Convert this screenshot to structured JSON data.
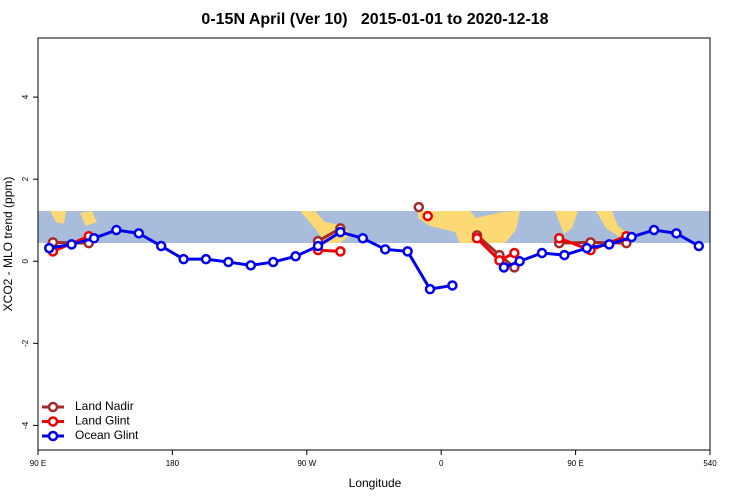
{
  "chart_data": {
    "type": "line",
    "title": "0-15N April (Ver 10)   2015-01-01 to 2020-12-18",
    "x_label": "Longitude",
    "y_label": "XCO2 - MLO trend (ppm)",
    "xlim": [
      90,
      540
    ],
    "ylim": [
      -4.6,
      5.44
    ],
    "xticks": [
      {
        "value": 90,
        "label": "90 E"
      },
      180,
      {
        "value": 270,
        "label": "90 W"
      },
      {
        "value": 360,
        "label": "0"
      },
      {
        "value": 450,
        "label": "90 E"
      },
      540
    ],
    "yticks": [
      -4,
      -2,
      0,
      2,
      4
    ],
    "legend": "bottom-left",
    "series": [
      {
        "name": "Land Nadir",
        "color": "#a52a2a",
        "x": [
          100,
          124,
          null,
          277.5,
          292.5,
          null,
          345,
          null,
          384,
          399,
          409,
          null,
          439,
          460,
          484
        ],
        "values": [
          0.46,
          0.44,
          null,
          0.49,
          0.8,
          null,
          1.32,
          null,
          0.63,
          0.15,
          -0.15,
          null,
          0.44,
          0.46,
          0.44
        ]
      },
      {
        "name": "Land Glint",
        "color": "#ee0000",
        "x": [
          100,
          124,
          null,
          277.5,
          292.5,
          null,
          351,
          null,
          384,
          399,
          409,
          null,
          439,
          460,
          484
        ],
        "values": [
          0.24,
          0.61,
          null,
          0.27,
          0.24,
          null,
          1.1,
          null,
          0.56,
          0.02,
          0.2,
          null,
          0.56,
          0.27,
          0.61
        ]
      },
      {
        "name": "Ocean Glint",
        "color": "#0000ee",
        "x": [
          97.5,
          112.5,
          127.5,
          142.5,
          157.5,
          172.5,
          187.5,
          202.5,
          217.5,
          232.5,
          247.5,
          262.5,
          277.5,
          292.5,
          307.5,
          322.5,
          337.5,
          352.5,
          367.5,
          null,
          402,
          412.5,
          427.5,
          442.5,
          457.5,
          472.5,
          487.5,
          502.5,
          517.5,
          532.5
        ],
        "values": [
          0.32,
          0.41,
          0.56,
          0.76,
          0.68,
          0.37,
          0.05,
          0.05,
          -0.02,
          -0.1,
          -0.02,
          0.12,
          0.37,
          0.71,
          0.56,
          0.29,
          0.24,
          -0.68,
          -0.59,
          null,
          -0.15,
          0,
          0.2,
          0.15,
          0.32,
          0.41,
          0.59,
          0.76,
          0.68,
          0.37
        ]
      }
    ]
  }
}
